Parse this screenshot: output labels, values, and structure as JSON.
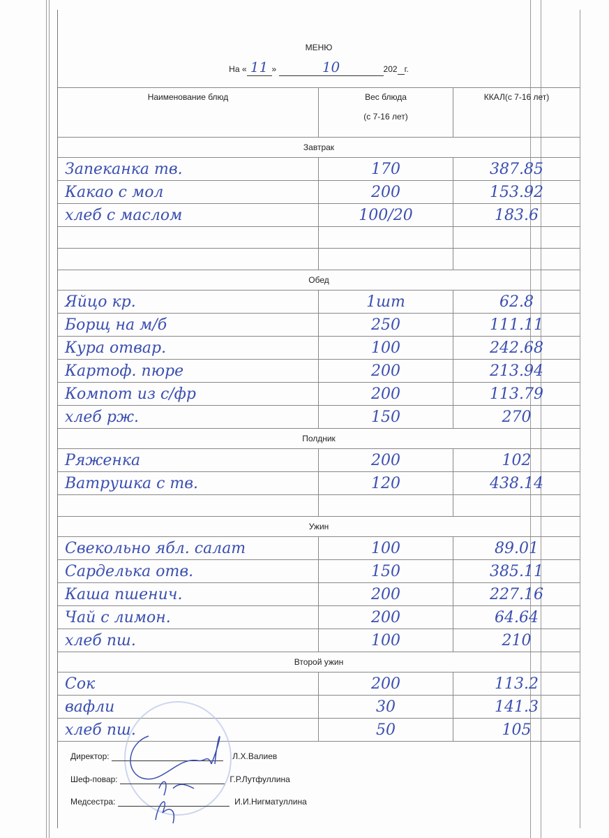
{
  "header": {
    "title": "МЕНЮ",
    "date_prefix": "На «",
    "day": "11",
    "date_mid": "»",
    "month": "10",
    "year_prefix": "202",
    "year_suffix": "г."
  },
  "columns": {
    "name": "Наименование блюд",
    "weight": "Вес блюда",
    "weight_sub": "(с 7-16 лет)",
    "kcal": "ККАЛ(с 7-16 лет)"
  },
  "sections": [
    {
      "title": "Завтрак",
      "items": [
        {
          "name": "Запеканка тв.",
          "weight": "170",
          "kcal": "387.85"
        },
        {
          "name": "Какао с мол",
          "weight": "200",
          "kcal": "153.92"
        },
        {
          "name": "хлеб с маслом",
          "weight": "100/20",
          "kcal": "183.6"
        }
      ]
    },
    {
      "title": "Обед",
      "items": [
        {
          "name": "Яйцо кр.",
          "weight": "1шт",
          "kcal": "62.8"
        },
        {
          "name": "Борщ на м/б",
          "weight": "250",
          "kcal": "111.11"
        },
        {
          "name": "Кура отвар.",
          "weight": "100",
          "kcal": "242.68"
        },
        {
          "name": "Картоф. пюре",
          "weight": "200",
          "kcal": "213.94"
        },
        {
          "name": "Компот из с/фр",
          "weight": "200",
          "kcal": "113.79"
        },
        {
          "name": "хлеб рж.",
          "weight": "150",
          "kcal": "270"
        }
      ]
    },
    {
      "title": "Полдник",
      "items": [
        {
          "name": "Ряженка",
          "weight": "200",
          "kcal": "102"
        },
        {
          "name": "Ватрушка с тв.",
          "weight": "120",
          "kcal": "438.14"
        }
      ]
    },
    {
      "title": "Ужин",
      "items": [
        {
          "name": "Свекольно ябл. салат",
          "weight": "100",
          "kcal": "89.01"
        },
        {
          "name": "Сарделька отв.",
          "weight": "150",
          "kcal": "385.11"
        },
        {
          "name": "Каша пшенич.",
          "weight": "200",
          "kcal": "227.16"
        },
        {
          "name": "Чай с лимон.",
          "weight": "200",
          "kcal": "64.64"
        },
        {
          "name": "хлеб пш.",
          "weight": "100",
          "kcal": "210"
        }
      ]
    },
    {
      "title": "Второй ужин",
      "items": [
        {
          "name": "Сок",
          "weight": "200",
          "kcal": "113.2"
        },
        {
          "name": "вафли",
          "weight": "30",
          "kcal": "141.3"
        },
        {
          "name": "хлеб пш.",
          "weight": "50",
          "kcal": "105"
        }
      ]
    }
  ],
  "signatures": [
    {
      "role": "Директор:",
      "name": "Л.Х.Валиев"
    },
    {
      "role": "Шеф-повар:",
      "name": "Г.Р.Лутфуллина"
    },
    {
      "role": "Медсестра:",
      "name": "И.И.Нигматуллина"
    }
  ],
  "colors": {
    "ink": "#3b4fb0",
    "stamp": "#b8c4e8"
  }
}
